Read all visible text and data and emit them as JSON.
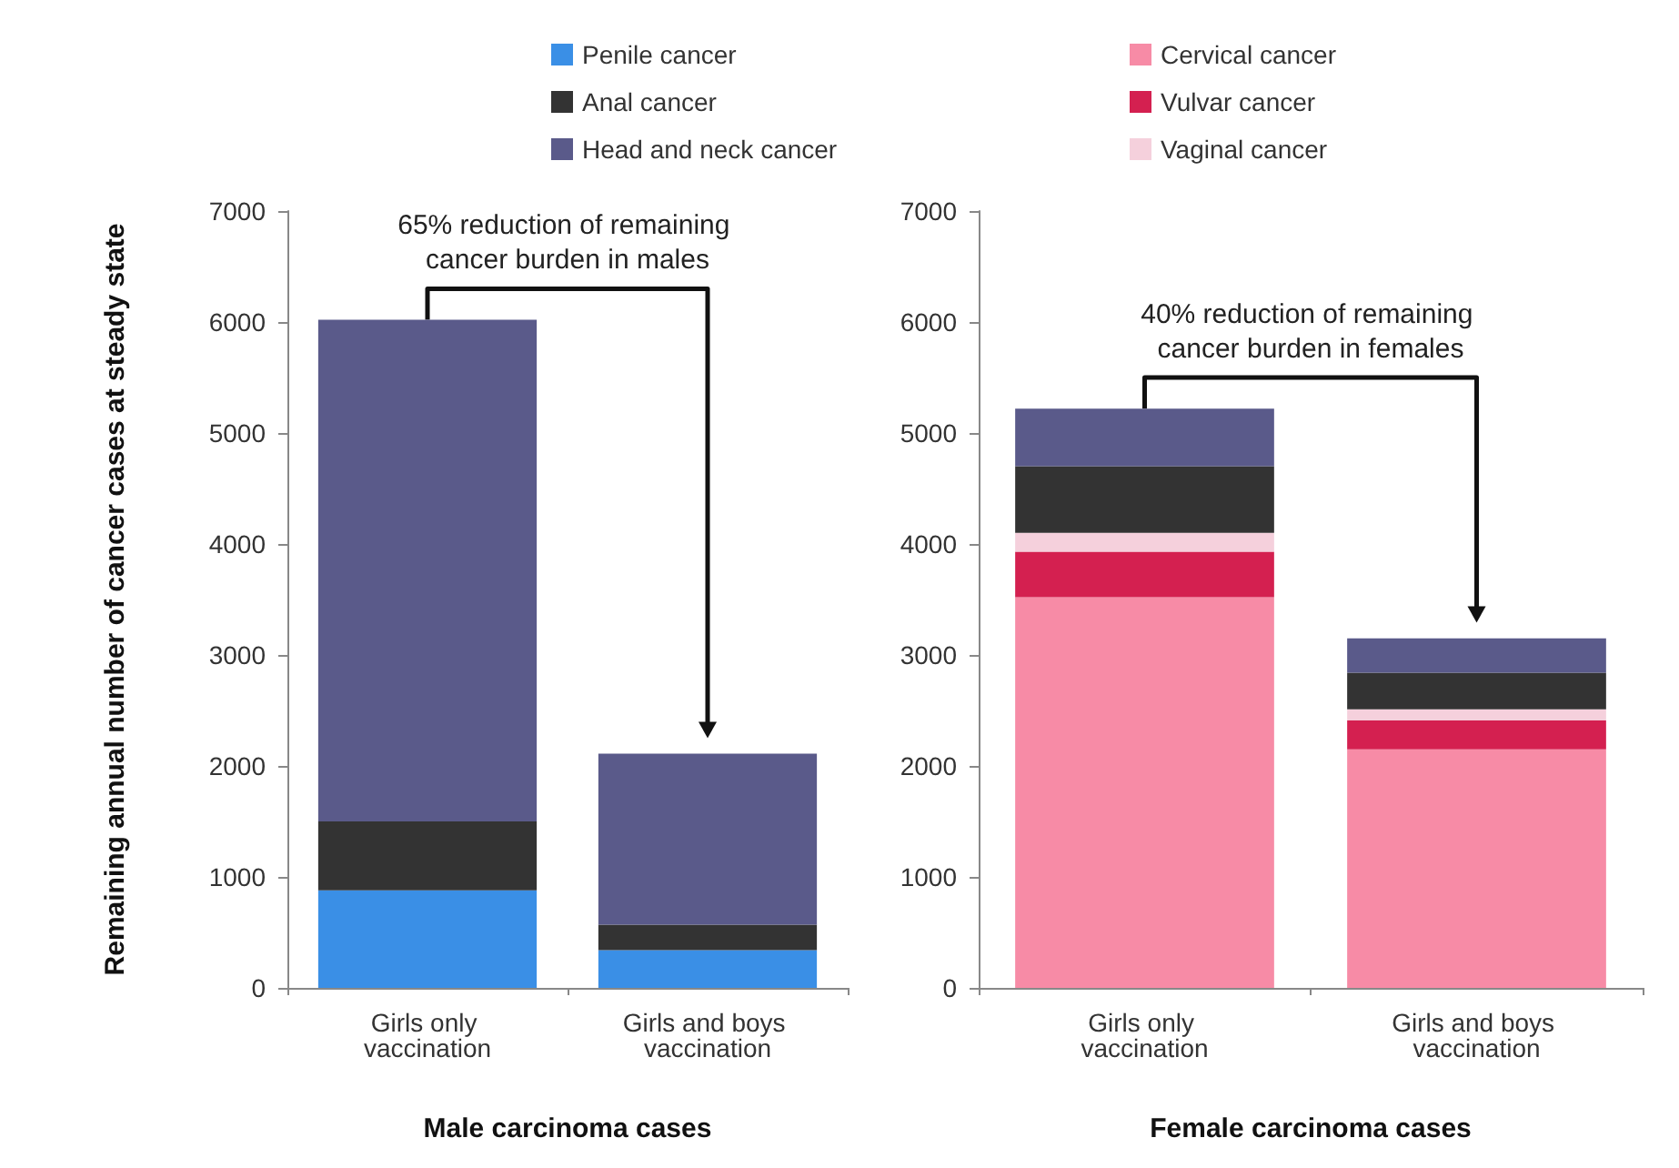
{
  "chart_data": [
    {
      "type": "bar",
      "stacked": true,
      "ylabel": "Remaining annual number of cancer cases at steady state",
      "xlabel": "Male carcinoma cases",
      "categories": [
        "Girls only vaccination",
        "Girls and boys vaccination"
      ],
      "series": [
        {
          "name": "Penile cancer",
          "color": "#3a8fe6",
          "values": [
            880,
            340
          ]
        },
        {
          "name": "Anal cancer",
          "color": "#333333",
          "values": [
            620,
            230
          ]
        },
        {
          "name": "Head and neck cancer",
          "color": "#5a5a8a",
          "values": [
            4520,
            1540
          ]
        }
      ],
      "ylim": [
        0,
        7000
      ],
      "yticks": [
        0,
        1000,
        2000,
        3000,
        4000,
        5000,
        6000,
        7000
      ],
      "legend": "top",
      "annotations": [
        "65% reduction of remaining cancer burden in males"
      ]
    },
    {
      "type": "bar",
      "stacked": true,
      "xlabel": "Female carcinoma cases",
      "categories": [
        "Girls only vaccination",
        "Girls and boys vaccination"
      ],
      "series": [
        {
          "name": "Cervical cancer",
          "color": "#f78ba6",
          "values": [
            3520,
            2150
          ]
        },
        {
          "name": "Vulvar cancer",
          "color": "#d42050",
          "values": [
            410,
            260
          ]
        },
        {
          "name": "Vaginal cancer",
          "color": "#f5d0dc",
          "values": [
            170,
            100
          ]
        },
        {
          "color": "#333333",
          "values": [
            600,
            330
          ]
        },
        {
          "color": "#5a5a8a",
          "values": [
            520,
            310
          ]
        }
      ],
      "ylim": [
        0,
        7000
      ],
      "yticks": [
        0,
        1000,
        2000,
        3000,
        4000,
        5000,
        6000,
        7000
      ],
      "legend": "top",
      "annotations": [
        "40% reduction of remaining cancer burden in females"
      ]
    }
  ]
}
